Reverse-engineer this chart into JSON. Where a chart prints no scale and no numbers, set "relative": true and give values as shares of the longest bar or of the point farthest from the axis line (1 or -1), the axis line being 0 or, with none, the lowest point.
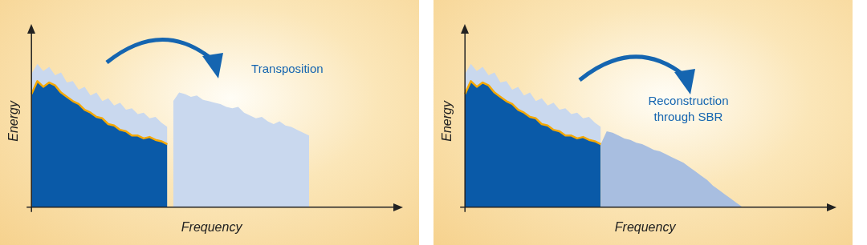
{
  "chart_data": [
    {
      "type": "area",
      "relative": true,
      "categories": [
        null,
        null,
        null,
        null,
        null,
        null,
        null,
        null,
        null,
        null,
        null,
        null,
        null,
        null,
        null,
        null,
        null,
        null,
        null,
        null,
        null,
        null,
        null,
        null,
        null,
        null,
        null,
        null,
        null,
        null,
        null,
        null,
        null,
        null,
        null,
        null,
        null,
        null,
        null,
        null,
        null,
        null,
        null,
        null,
        null,
        null,
        null,
        null,
        null,
        null,
        null,
        null,
        null,
        null,
        null,
        null,
        null,
        null,
        null,
        null,
        null,
        null
      ],
      "xlabel": "Frequency",
      "ylabel": "Energy",
      "annotations": [
        "Transposition"
      ],
      "series": [
        {
          "type": "area",
          "color": "#c9d8ee",
          "values": [
            0.93,
            1.0,
            0.95,
            0.98,
            0.92,
            0.94,
            0.87,
            0.88,
            0.82,
            0.84,
            0.78,
            0.8,
            0.74,
            0.76,
            0.71,
            0.73,
            0.68,
            0.69,
            0.65,
            0.66,
            0.62,
            0.63,
            0.59,
            0.56,
            null,
            null,
            null,
            null,
            null,
            null,
            null,
            null,
            null,
            null,
            null,
            null,
            null,
            null,
            null,
            null,
            null,
            null,
            null,
            null,
            null,
            null,
            null,
            null,
            null,
            null,
            null,
            null,
            null,
            null,
            null,
            null,
            null,
            null,
            null,
            null,
            null,
            null
          ]
        },
        {
          "type": "area",
          "color": "#0a5aa8",
          "values": [
            0.79,
            0.88,
            0.84,
            0.87,
            0.85,
            0.8,
            0.77,
            0.74,
            0.72,
            0.68,
            0.66,
            0.63,
            0.62,
            0.58,
            0.57,
            0.54,
            0.53,
            0.5,
            0.5,
            0.48,
            0.49,
            0.47,
            0.46,
            0.44,
            null,
            null,
            null,
            null,
            null,
            null,
            null,
            null,
            null,
            null,
            null,
            null,
            null,
            null,
            null,
            null,
            null,
            null,
            null,
            null,
            null,
            null,
            null,
            null,
            null,
            null,
            null,
            null,
            null,
            null,
            null,
            null,
            null,
            null,
            null,
            null,
            null,
            null
          ]
        },
        {
          "type": "line",
          "color": "#f5a800",
          "values": [
            0.79,
            0.88,
            0.84,
            0.87,
            0.85,
            0.8,
            0.77,
            0.74,
            0.72,
            0.68,
            0.66,
            0.63,
            0.62,
            0.58,
            0.57,
            0.54,
            0.53,
            0.5,
            0.5,
            0.48,
            0.49,
            0.47,
            0.46,
            0.44,
            null,
            null,
            null,
            null,
            null,
            null,
            null,
            null,
            null,
            null,
            null,
            null,
            null,
            null,
            null,
            null,
            null,
            null,
            null,
            null,
            null,
            null,
            null,
            null,
            null,
            null,
            null,
            null,
            null,
            null,
            null,
            null,
            null,
            null,
            null,
            null,
            null,
            null
          ]
        },
        {
          "type": "area",
          "color": "#c9d8ee",
          "values": [
            null,
            null,
            null,
            null,
            null,
            null,
            null,
            null,
            null,
            null,
            null,
            null,
            null,
            null,
            null,
            null,
            null,
            null,
            null,
            null,
            null,
            null,
            null,
            null,
            0.74,
            0.8,
            0.79,
            0.77,
            0.78,
            0.75,
            0.74,
            0.73,
            0.72,
            0.7,
            0.69,
            0.7,
            0.66,
            0.64,
            0.62,
            0.63,
            0.6,
            0.58,
            0.6,
            0.57,
            0.56,
            0.54,
            0.52,
            0.5,
            null,
            null,
            null,
            null,
            null,
            null,
            null,
            null,
            null,
            null,
            null,
            null,
            null,
            null
          ]
        }
      ]
    },
    {
      "type": "area",
      "relative": true,
      "categories": [
        null,
        null,
        null,
        null,
        null,
        null,
        null,
        null,
        null,
        null,
        null,
        null,
        null,
        null,
        null,
        null,
        null,
        null,
        null,
        null,
        null,
        null,
        null,
        null,
        null,
        null,
        null,
        null,
        null,
        null,
        null,
        null,
        null,
        null,
        null,
        null,
        null,
        null,
        null,
        null,
        null,
        null,
        null,
        null,
        null,
        null,
        null,
        null,
        null,
        null,
        null,
        null,
        null,
        null,
        null,
        null,
        null,
        null,
        null,
        null,
        null,
        null
      ],
      "xlabel": "Frequency",
      "ylabel": "Energy",
      "annotations": [
        "Reconstruction\nthrough SBR"
      ],
      "series": [
        {
          "type": "area",
          "color": "#c9d8ee",
          "values": [
            0.93,
            1.0,
            0.95,
            0.98,
            0.92,
            0.94,
            0.87,
            0.88,
            0.82,
            0.84,
            0.78,
            0.8,
            0.74,
            0.76,
            0.71,
            0.73,
            0.68,
            0.69,
            0.65,
            0.66,
            0.62,
            0.63,
            0.59,
            0.56,
            null,
            null,
            null,
            null,
            null,
            null,
            null,
            null,
            null,
            null,
            null,
            null,
            null,
            null,
            null,
            null,
            null,
            null,
            null,
            null,
            null,
            null,
            null,
            null,
            null,
            null,
            null,
            null,
            null,
            null,
            null,
            null,
            null,
            null,
            null,
            null,
            null,
            null
          ]
        },
        {
          "type": "area",
          "color": "#0a5aa8",
          "values": [
            0.79,
            0.88,
            0.84,
            0.87,
            0.85,
            0.8,
            0.77,
            0.74,
            0.72,
            0.68,
            0.66,
            0.63,
            0.62,
            0.58,
            0.57,
            0.54,
            0.53,
            0.5,
            0.5,
            0.48,
            0.49,
            0.47,
            0.46,
            0.44,
            null,
            null,
            null,
            null,
            null,
            null,
            null,
            null,
            null,
            null,
            null,
            null,
            null,
            null,
            null,
            null,
            null,
            null,
            null,
            null,
            null,
            null,
            null,
            null,
            null,
            null,
            null,
            null,
            null,
            null,
            null,
            null,
            null,
            null,
            null,
            null,
            null,
            null
          ]
        },
        {
          "type": "line",
          "color": "#f5a800",
          "values": [
            0.79,
            0.88,
            0.84,
            0.87,
            0.85,
            0.8,
            0.77,
            0.74,
            0.72,
            0.68,
            0.66,
            0.63,
            0.62,
            0.58,
            0.57,
            0.54,
            0.53,
            0.5,
            0.5,
            0.48,
            0.49,
            0.47,
            0.46,
            0.44,
            null,
            null,
            null,
            null,
            null,
            null,
            null,
            null,
            null,
            null,
            null,
            null,
            null,
            null,
            null,
            null,
            null,
            null,
            null,
            null,
            null,
            null,
            null,
            null,
            null,
            null,
            null,
            null,
            null,
            null,
            null,
            null,
            null,
            null,
            null,
            null,
            null,
            null
          ]
        },
        {
          "type": "area",
          "color": "#a8bee0",
          "values": [
            null,
            null,
            null,
            null,
            null,
            null,
            null,
            null,
            null,
            null,
            null,
            null,
            null,
            null,
            null,
            null,
            null,
            null,
            null,
            null,
            null,
            null,
            null,
            0.44,
            0.53,
            0.52,
            0.5,
            0.48,
            0.47,
            0.45,
            0.44,
            0.42,
            0.4,
            0.39,
            0.37,
            0.35,
            0.33,
            0.31,
            0.28,
            0.25,
            0.22,
            0.19,
            0.15,
            0.12,
            0.09,
            0.06,
            0.03,
            0,
            null,
            null,
            null,
            null,
            null,
            null,
            null,
            null,
            null,
            null,
            null,
            null,
            null,
            null
          ]
        }
      ]
    }
  ]
}
